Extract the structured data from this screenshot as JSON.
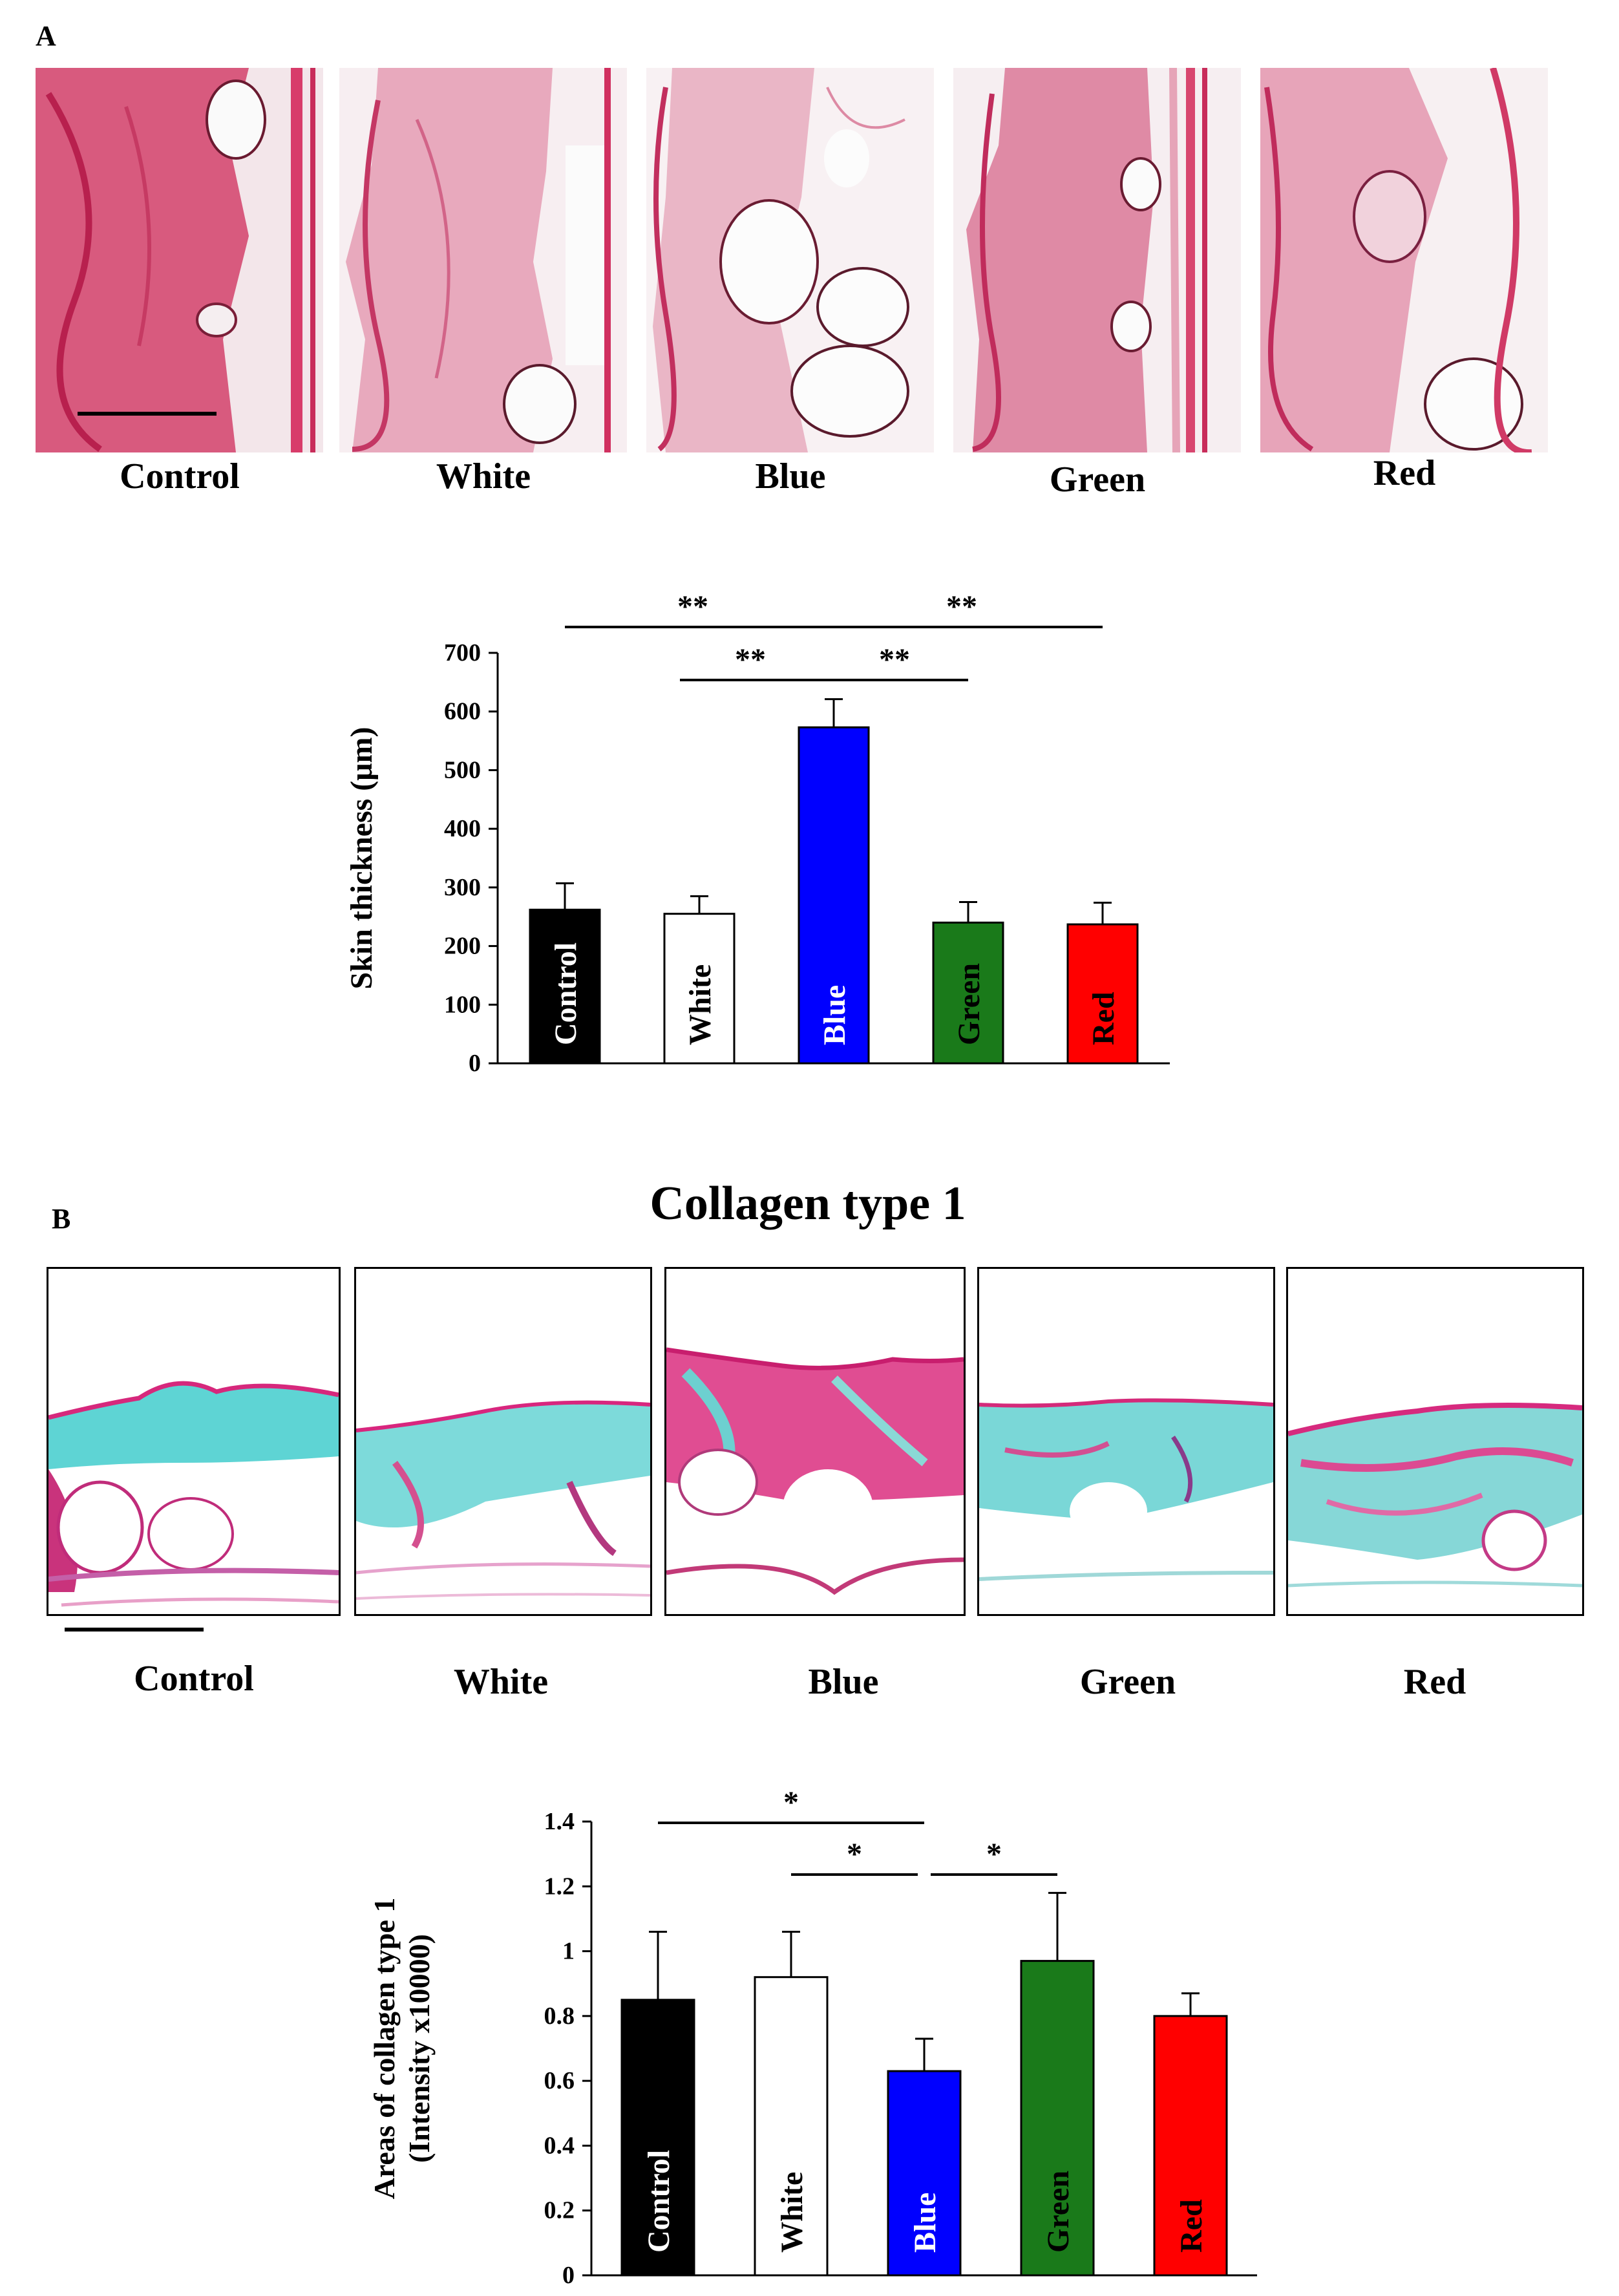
{
  "panel_a": {
    "letter": "A",
    "image_labels": [
      "Control",
      "White",
      "Blue",
      "Green",
      "Red"
    ]
  },
  "panel_b": {
    "letter": "B",
    "title": "Collagen type 1",
    "image_labels": [
      "Control",
      "White",
      "Blue",
      "Green",
      "Red"
    ]
  },
  "colors": {
    "control": "#000000",
    "white": "#ffffff",
    "blue": "#0000ff",
    "green": "#1a7a1a",
    "red": "#ff0000",
    "he_stain": "#d4306a",
    "collagen_cyan": "#5fd6d6",
    "collagen_magenta": "#e0368c"
  },
  "chart_data": [
    {
      "type": "bar",
      "title": "",
      "xlabel": "",
      "ylabel": "Skin thickness (μm)",
      "ylim": [
        0,
        700
      ],
      "yticks": [
        0,
        100,
        200,
        300,
        400,
        500,
        600,
        700
      ],
      "categories": [
        "Control",
        "White",
        "Blue",
        "Green",
        "Red"
      ],
      "values": [
        262,
        255,
        573,
        240,
        237
      ],
      "errors": [
        45,
        30,
        48,
        35,
        37
      ],
      "bar_colors": [
        "#000000",
        "#ffffff",
        "#0000ff",
        "#1a7a1a",
        "#ff0000"
      ],
      "bar_text_colors": [
        "#ffffff",
        "#000000",
        "#ffffff",
        "#000000",
        "#000000"
      ],
      "significance": [
        {
          "from": "Control",
          "to": "Blue",
          "label": "**"
        },
        {
          "from": "Blue",
          "to": "Red",
          "label": "**"
        },
        {
          "from": "White",
          "to": "Blue",
          "label": "**"
        },
        {
          "from": "Blue",
          "to": "Green",
          "label": "**"
        }
      ]
    },
    {
      "type": "bar",
      "title": "",
      "xlabel": "",
      "ylabel": "Areas of collagen type 1",
      "ylabel2": "(Intensity x10000)",
      "ylim": [
        0,
        1.4
      ],
      "yticks": [
        0,
        0.2,
        0.4,
        0.6,
        0.8,
        1,
        1.2,
        1.4
      ],
      "categories": [
        "Control",
        "White",
        "Blue",
        "Green",
        "Red"
      ],
      "values": [
        0.85,
        0.92,
        0.63,
        0.97,
        0.8
      ],
      "errors": [
        0.21,
        0.14,
        0.1,
        0.21,
        0.07
      ],
      "bar_colors": [
        "#000000",
        "#ffffff",
        "#0000ff",
        "#1a7a1a",
        "#ff0000"
      ],
      "bar_text_colors": [
        "#ffffff",
        "#000000",
        "#ffffff",
        "#000000",
        "#000000"
      ],
      "significance": [
        {
          "from": "Control",
          "to": "Blue",
          "label": "*"
        },
        {
          "from": "White",
          "to": "Blue",
          "label": "*"
        },
        {
          "from": "Blue",
          "to": "Green",
          "label": "*"
        }
      ]
    }
  ]
}
